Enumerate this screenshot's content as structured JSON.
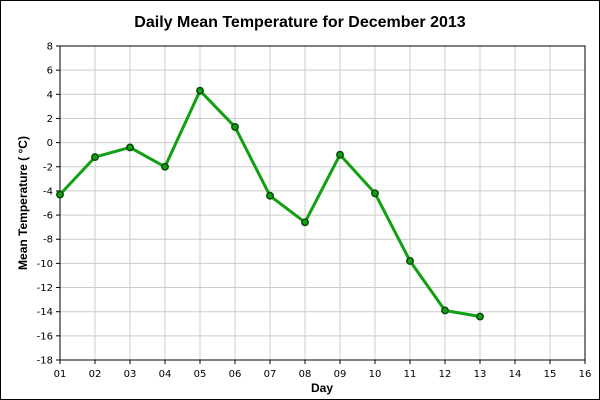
{
  "chart_data": {
    "type": "line",
    "title": "Daily Mean Temperature for December 2013",
    "xlabel": "Day",
    "ylabel": "Mean Temperature ( °C)",
    "x_ticks": [
      "01",
      "02",
      "03",
      "04",
      "05",
      "06",
      "07",
      "08",
      "09",
      "10",
      "11",
      "12",
      "13",
      "14",
      "15",
      "16"
    ],
    "xlim": [
      1,
      16
    ],
    "ylim": [
      -18,
      8
    ],
    "y_ticks": [
      -18,
      -16,
      -14,
      -12,
      -10,
      -8,
      -6,
      -4,
      -2,
      0,
      2,
      4,
      6,
      8
    ],
    "grid": true,
    "series": [
      {
        "color": "#11a011",
        "marker_color": "#0a4a0a",
        "x": [
          1,
          2,
          3,
          4,
          5,
          6,
          7,
          8,
          9,
          10,
          11,
          12,
          13
        ],
        "values": [
          -4.3,
          -1.2,
          -0.4,
          -2.0,
          4.3,
          1.3,
          -4.4,
          -6.6,
          -1.0,
          -4.2,
          -9.8,
          -13.9,
          -14.4
        ]
      }
    ]
  }
}
